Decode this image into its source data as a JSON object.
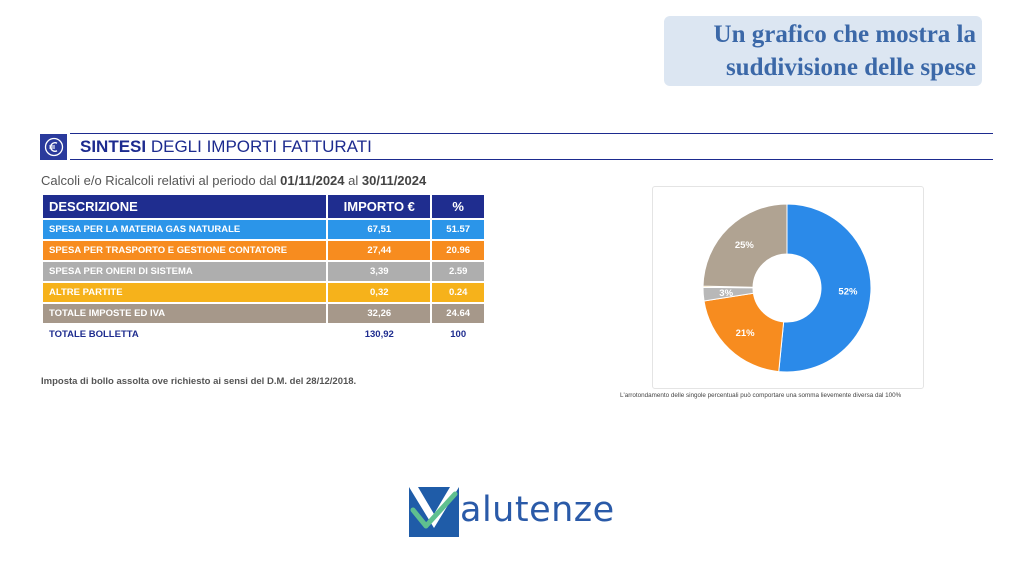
{
  "callout": {
    "line1": "Un grafico che mostra la",
    "line2": "suddivisione delle spese"
  },
  "section": {
    "icon": "euro-icon",
    "title_bold": "SINTESI",
    "title_rest": " DEGLI IMPORTI FATTURATI"
  },
  "period": {
    "prefix": "Calcoli e/o Ricalcoli relativi al periodo dal ",
    "from": "01/11/2024",
    "middle": " al ",
    "to": "30/11/2024"
  },
  "table": {
    "headers": [
      "DESCRIZIONE",
      "IMPORTO €",
      "%"
    ],
    "rows": [
      {
        "label": "SPESA PER LA MATERIA GAS NATURALE",
        "amount": "67,51",
        "percent": "51.57",
        "color": "#2b95e9"
      },
      {
        "label": "SPESA PER TRASPORTO E GESTIONE CONTATORE",
        "amount": "27,44",
        "percent": "20.96",
        "color": "#f78c1f"
      },
      {
        "label": "SPESA PER ONERI DI SISTEMA",
        "amount": "3,39",
        "percent": "2.59",
        "color": "#aeaeae"
      },
      {
        "label": "ALTRE PARTITE",
        "amount": "0,32",
        "percent": "0.24",
        "color": "#f6b21b"
      },
      {
        "label": "TOTALE IMPOSTE ED IVA",
        "amount": "32,26",
        "percent": "24.64",
        "color": "#a6988a"
      }
    ],
    "total": {
      "label": "TOTALE BOLLETTA",
      "amount": "130,92",
      "percent": "100"
    }
  },
  "stamp_note": "Imposta di bollo assolta ove richiesto ai sensi del D.M. del 28/12/2018.",
  "chart_data": {
    "type": "pie",
    "categories": [
      "SPESA PER LA MATERIA GAS NATURALE",
      "SPESA PER TRASPORTO E GESTIONE CONTATORE",
      "SPESA PER ONERI DI SISTEMA",
      "ALTRE PARTITE",
      "TOTALE IMPOSTE ED IVA"
    ],
    "values": [
      51.57,
      20.96,
      2.59,
      0.24,
      24.64
    ],
    "labels": [
      "52%",
      "21%",
      "3%",
      "",
      "25%"
    ],
    "colors": [
      "#2b8ae9",
      "#f78c1f",
      "#b8b8b8",
      "#f6b21b",
      "#b0a392"
    ],
    "donut": true
  },
  "rounding_note": "L'arrotondamento delle singole percentuali può comportare una somma lievemente diversa dal 100%",
  "logo": {
    "word": "alutenze",
    "mark": "v-check-logo-icon"
  },
  "colors": {
    "navy": "#1f2d8f",
    "callout_bg": "#dce6f2",
    "callout_text": "#3b68a8"
  }
}
